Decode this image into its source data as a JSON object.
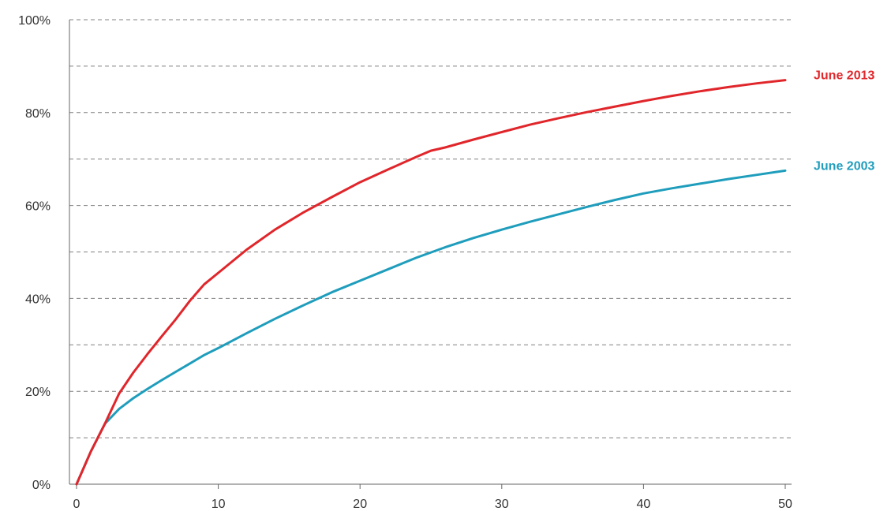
{
  "chart_data": {
    "type": "line",
    "title": "",
    "xlabel": "",
    "ylabel": "",
    "xlim": [
      0,
      50
    ],
    "ylim": [
      0,
      100
    ],
    "x_ticks": [
      0,
      10,
      20,
      30,
      40,
      50
    ],
    "y_ticks": [
      0,
      20,
      40,
      60,
      80,
      100
    ],
    "y_tick_labels": [
      "0%",
      "20%",
      "40%",
      "60%",
      "80%",
      "100%"
    ],
    "gridlines_y": [
      10,
      20,
      30,
      40,
      50,
      60,
      70,
      80,
      90,
      100
    ],
    "grid": "horizontal dashed",
    "legend": "inline labels at right end of lines",
    "series": [
      {
        "name": "June 2013",
        "color": "#e0262b",
        "x": [
          0,
          1,
          2,
          3,
          4,
          5,
          6,
          7,
          8,
          9,
          10,
          12,
          14,
          16,
          18,
          20,
          22,
          24,
          25,
          26,
          28,
          30,
          32,
          34,
          36,
          38,
          40,
          42,
          44,
          46,
          48,
          50
        ],
        "y": [
          0,
          7,
          13,
          19.5,
          24,
          28,
          31.8,
          35.5,
          39.5,
          43,
          45.5,
          50.5,
          54.8,
          58.5,
          61.8,
          65,
          67.8,
          70.5,
          71.8,
          72.5,
          74.2,
          75.8,
          77.4,
          78.8,
          80.1,
          81.3,
          82.5,
          83.6,
          84.6,
          85.5,
          86.3,
          87
        ]
      },
      {
        "name": "June 2003",
        "color": "#1f9dbc",
        "x": [
          0,
          1,
          2,
          3,
          4,
          5,
          6,
          7,
          8,
          9,
          10,
          12,
          14,
          16,
          18,
          20,
          22,
          24,
          26,
          28,
          30,
          32,
          34,
          36,
          38,
          40,
          42,
          44,
          46,
          48,
          50
        ],
        "y": [
          0,
          7,
          13,
          16.2,
          18.5,
          20.5,
          22.4,
          24.2,
          26,
          27.8,
          29.3,
          32.5,
          35.6,
          38.5,
          41.3,
          43.8,
          46.3,
          48.8,
          51,
          53,
          54.8,
          56.5,
          58.1,
          59.7,
          61.2,
          62.6,
          63.7,
          64.7,
          65.7,
          66.6,
          67.5
        ]
      }
    ]
  }
}
